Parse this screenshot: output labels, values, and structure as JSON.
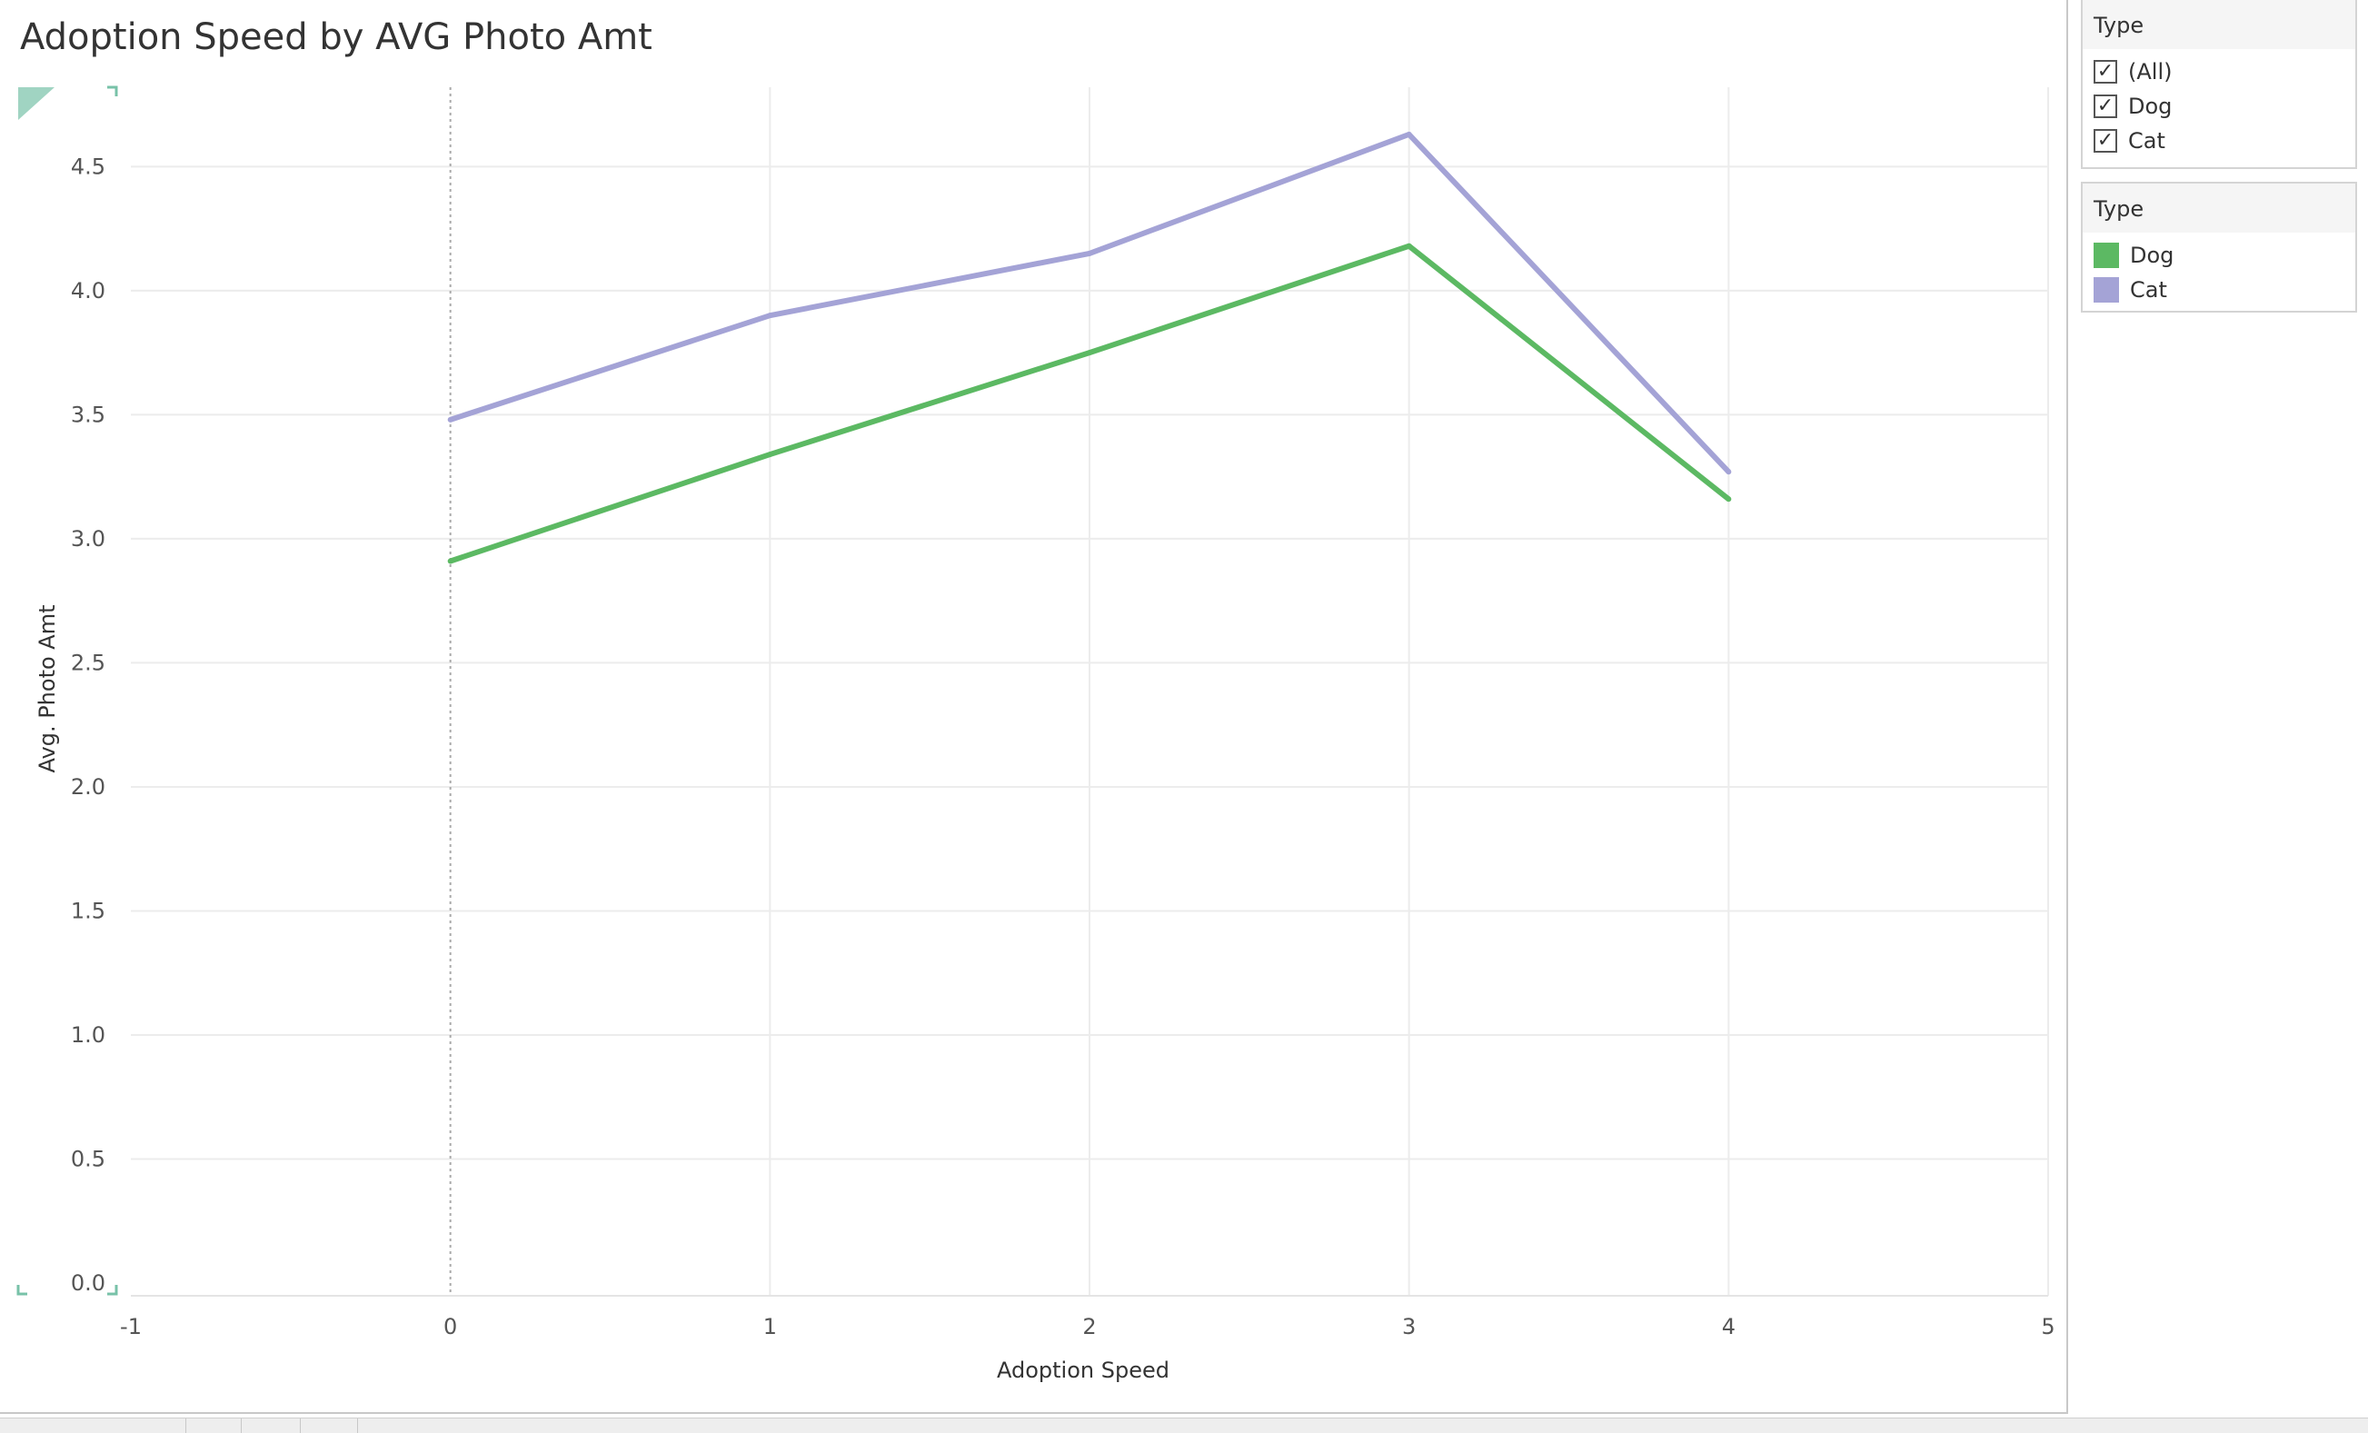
{
  "chart_data": {
    "type": "line",
    "title": "Adoption Speed by AVG Photo Amt",
    "xlabel": "Adoption Speed",
    "ylabel": "Avg. Photo Amt",
    "x": [
      0,
      1,
      2,
      3,
      4
    ],
    "xlim": [
      -1,
      5
    ],
    "ylim": [
      0,
      5
    ],
    "xticks": [
      -1,
      0,
      1,
      2,
      3,
      4,
      5
    ],
    "yticks": [
      0,
      0.5,
      1,
      1.5,
      2,
      2.5,
      3,
      3.5,
      4,
      4.5
    ],
    "ytick_labels": [
      "0.0",
      "0.5",
      "1.0",
      "1.5",
      "2.0",
      "2.5",
      "3.0",
      "3.5",
      "4.0",
      "4.5"
    ],
    "grid": true,
    "reference_line_x": 0,
    "series": [
      {
        "name": "Cat",
        "color": "#a4a3d6",
        "values": [
          3.48,
          3.9,
          4.15,
          4.63,
          3.27
        ]
      },
      {
        "name": "Dog",
        "color": "#5cb963",
        "values": [
          2.91,
          3.34,
          3.75,
          4.18,
          3.16
        ]
      }
    ],
    "legend_placement": "right"
  },
  "filter": {
    "title": "Type",
    "items": [
      {
        "label": "(All)",
        "checked": true
      },
      {
        "label": "Dog",
        "checked": true
      },
      {
        "label": "Cat",
        "checked": true
      }
    ]
  },
  "legend": {
    "title": "Type",
    "items": [
      {
        "label": "Dog",
        "color": "#5cb963"
      },
      {
        "label": "Cat",
        "color": "#a4a3d6"
      }
    ]
  }
}
